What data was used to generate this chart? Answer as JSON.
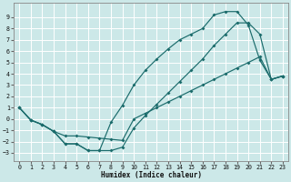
{
  "xlabel": "Humidex (Indice chaleur)",
  "bg_color": "#cce8e8",
  "grid_color": "#ffffff",
  "line_color": "#1a6b6b",
  "xlim": [
    -0.5,
    23.5
  ],
  "ylim": [
    -3.7,
    10.3
  ],
  "xticks": [
    0,
    1,
    2,
    3,
    4,
    5,
    6,
    7,
    8,
    9,
    10,
    11,
    12,
    13,
    14,
    15,
    16,
    17,
    18,
    19,
    20,
    21,
    22,
    23
  ],
  "yticks": [
    -3,
    -2,
    -1,
    0,
    1,
    2,
    3,
    4,
    5,
    6,
    7,
    8,
    9
  ],
  "line_top_x": [
    0,
    1,
    2,
    3,
    4,
    5,
    6,
    7,
    8,
    9,
    10,
    11,
    12,
    13,
    14,
    15,
    16,
    17,
    18,
    19,
    20,
    21,
    22,
    23
  ],
  "line_top_y": [
    1.0,
    -0.1,
    -0.5,
    -1.1,
    -2.2,
    -2.2,
    -2.8,
    -2.8,
    -0.3,
    1.2,
    3.0,
    4.3,
    5.3,
    6.2,
    7.0,
    7.5,
    8.0,
    9.2,
    9.5,
    9.5,
    8.3,
    5.2,
    3.5,
    3.8
  ],
  "line_bot_x": [
    0,
    1,
    2,
    3,
    4,
    5,
    6,
    7,
    8,
    9,
    10,
    11,
    12,
    13,
    14,
    15,
    16,
    17,
    18,
    19,
    20,
    21,
    22,
    23
  ],
  "line_bot_y": [
    1.0,
    -0.1,
    -0.5,
    -1.1,
    -2.2,
    -2.2,
    -2.8,
    -2.8,
    -2.8,
    -2.5,
    -0.8,
    0.3,
    1.3,
    2.3,
    3.3,
    4.3,
    5.3,
    6.5,
    7.5,
    8.5,
    8.5,
    7.5,
    3.5,
    3.8
  ],
  "line_diag_x": [
    0,
    1,
    2,
    3,
    4,
    5,
    6,
    7,
    8,
    9,
    10,
    11,
    12,
    13,
    14,
    15,
    16,
    17,
    18,
    19,
    20,
    21,
    22,
    23
  ],
  "line_diag_y": [
    1.0,
    -0.1,
    -0.5,
    -1.1,
    -1.5,
    -1.5,
    -1.6,
    -1.7,
    -1.8,
    -1.9,
    0.0,
    0.5,
    1.0,
    1.5,
    2.0,
    2.5,
    3.0,
    3.5,
    4.0,
    4.5,
    5.0,
    5.5,
    3.5,
    3.8
  ]
}
